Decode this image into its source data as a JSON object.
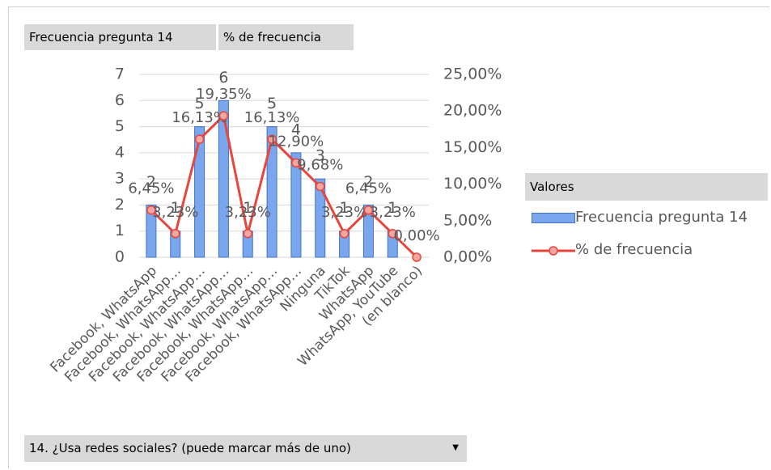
{
  "ui": {
    "field_buttons": [
      "Frecuencia pregunta 14",
      "% de frecuencia"
    ],
    "filter_button": "14. ¿Usa redes sociales? (puede marcar más de uno)"
  },
  "chart_data": {
    "type": "bar",
    "categories": [
      "Facebook, WhatsApp",
      "Facebook, WhatsApp…",
      "Facebook, WhatsApp…",
      "Facebook, WhatsApp…",
      "Facebook, WhatsApp…",
      "Facebook, WhatsApp…",
      "Facebook, WhatsApp…",
      "Ninguna",
      "TikTok",
      "WhatsApp",
      "WhatsApp, YouTube",
      "(en blanco)"
    ],
    "series": [
      {
        "name": "Frecuencia pregunta 14",
        "type": "bar",
        "color": "#7aa6ee",
        "values": [
          2,
          1,
          5,
          6,
          1,
          5,
          4,
          3,
          1,
          2,
          1,
          null
        ]
      },
      {
        "name": "% de frecuencia",
        "type": "line",
        "axis": "y2",
        "color": "#e8453c",
        "values": [
          6.45,
          3.23,
          16.13,
          19.35,
          3.23,
          16.13,
          12.9,
          9.68,
          3.23,
          6.45,
          3.23,
          0
        ],
        "value_labels": [
          "6,45%",
          "3,23%",
          "16,13%",
          "19,35%",
          "3,23%",
          "16,13%",
          "12,90%",
          "9,68%",
          "3,23%",
          "6,45%",
          "3,23%",
          "0,00%"
        ]
      }
    ],
    "ylim": [
      0,
      7
    ],
    "yticks": [
      0,
      1,
      2,
      3,
      4,
      5,
      6,
      7
    ],
    "y2lim": [
      0,
      25
    ],
    "y2ticks": [
      {
        "value": 0,
        "label": "0,00%"
      },
      {
        "value": 5,
        "label": "5,00%"
      },
      {
        "value": 10,
        "label": "10,00%"
      },
      {
        "value": 15,
        "label": "15,00%"
      },
      {
        "value": 20,
        "label": "20,00%"
      },
      {
        "value": 25,
        "label": "25,00%"
      }
    ],
    "grid": true,
    "legend_title": "Valores",
    "legend": "right"
  }
}
